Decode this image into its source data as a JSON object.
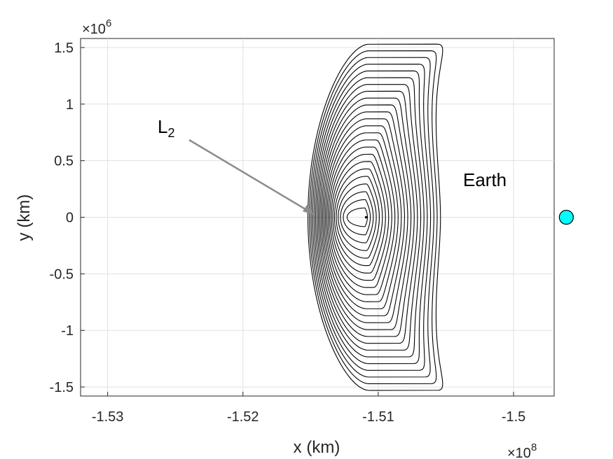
{
  "chart_data": {
    "type": "line",
    "xlabel": "x (km)",
    "ylabel": "y (km)",
    "x_exponent_label": "×10",
    "x_exponent": "8",
    "y_exponent_label": "×10",
    "y_exponent": "6",
    "xlim": [
      -153200000.0,
      -149700000.0
    ],
    "ylim": [
      -1580000.0,
      1580000.0
    ],
    "xticks": [
      -153000000.0,
      -152000000.0,
      -151000000.0,
      -150000000.0
    ],
    "xtick_labels": [
      "-1.53",
      "-1.52",
      "-1.51",
      "-1.5"
    ],
    "yticks": [
      -1500000.0,
      -1000000.0,
      -500000.0,
      0,
      500000.0,
      1000000.0,
      1500000.0
    ],
    "ytick_labels": [
      "-1.5",
      "-1",
      "-0.5",
      "0",
      "0.5",
      "1",
      "1.5"
    ],
    "grid": true,
    "annotations": [
      {
        "text": "L",
        "subscript": "2",
        "x": -151100000.0,
        "y": 0,
        "arrow": true
      },
      {
        "text": "Earth",
        "x": -149610000.0,
        "y": 0
      }
    ],
    "orbit_family": {
      "center_x": -151100000.0,
      "center_y": 0,
      "count": 24,
      "max_y_amplitude": 1530000.0,
      "left_extent": -151440000.0,
      "right_extent": -150540000.0,
      "color": "#000000"
    },
    "earth": {
      "x": -149610000.0,
      "y": 0,
      "color": "#00ffff"
    }
  }
}
